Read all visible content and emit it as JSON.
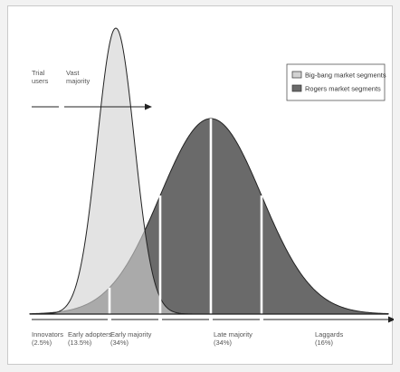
{
  "chart_data": {
    "type": "area",
    "title": "",
    "xlabel": "",
    "ylabel": "",
    "series": [
      {
        "name": "Big-bang market segments",
        "kind": "narrow-bell",
        "color": "#d2d2d2"
      },
      {
        "name": "Rogers market segments",
        "kind": "wide-bell",
        "color": "#6a6a6a"
      }
    ],
    "annotations": {
      "trial_users": [
        "Trial",
        "users"
      ],
      "vast_majority": [
        "Vast",
        "majority"
      ]
    },
    "segments": [
      {
        "line1": "Innovators",
        "line2": "(2.5%)",
        "share": 2.5
      },
      {
        "line1": "Early adopters",
        "line2": "(13.5%)",
        "share": 13.5
      },
      {
        "line1": "Early majority",
        "line2": "(34%)",
        "share": 34
      },
      {
        "line1": "Late majority",
        "line2": "(34%)",
        "share": 34
      },
      {
        "line1": "Laggards",
        "line2": "(16%)",
        "share": 16
      }
    ],
    "legend_position": "top-right"
  }
}
